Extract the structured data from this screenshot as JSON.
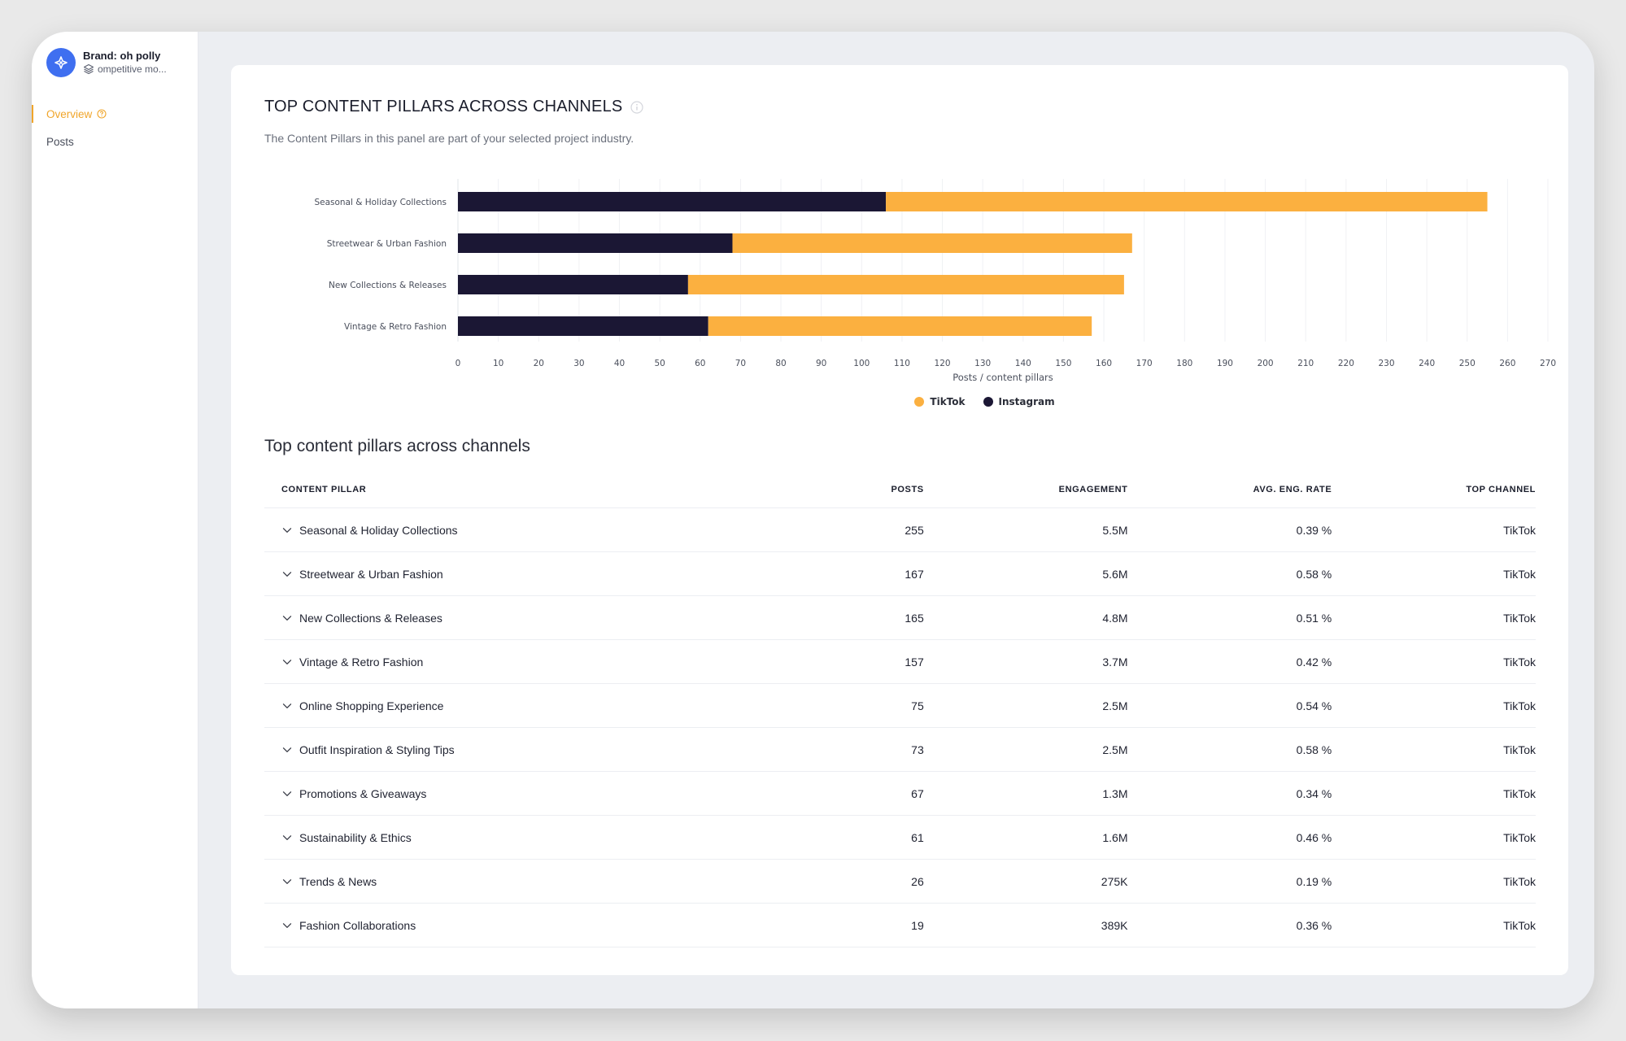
{
  "sidebar": {
    "brand_name": "Brand: oh polly",
    "brand_sub": "ompetitive mo...",
    "items": [
      {
        "label": "Overview",
        "active": true
      },
      {
        "label": "Posts",
        "active": false
      }
    ]
  },
  "panel": {
    "title": "TOP CONTENT PILLARS ACROSS CHANNELS",
    "subtitle": "The Content Pillars in this panel are part of your selected project industry."
  },
  "colors": {
    "tiktok": "#fbb040",
    "instagram": "#1b1734",
    "accent": "#f0a52a",
    "brand_avatar": "#3f6ff0"
  },
  "chart_data": {
    "type": "bar",
    "orientation": "horizontal",
    "stacked": true,
    "categories": [
      "Seasonal & Holiday Collections",
      "Streetwear & Urban Fashion",
      "New Collections & Releases",
      "Vintage & Retro Fashion"
    ],
    "series": [
      {
        "name": "Instagram",
        "values": [
          106,
          68,
          57,
          62
        ]
      },
      {
        "name": "TikTok",
        "values": [
          149,
          99,
          108,
          95
        ]
      }
    ],
    "xlabel": "Posts / content pillars",
    "xlim": [
      0,
      270
    ],
    "xticks": [
      0,
      10,
      20,
      30,
      40,
      50,
      60,
      70,
      80,
      90,
      100,
      110,
      120,
      130,
      140,
      150,
      160,
      170,
      180,
      190,
      200,
      210,
      220,
      230,
      240,
      250,
      260,
      270
    ],
    "grid": true,
    "legend": "bottom-center",
    "legend_entries": [
      "TikTok",
      "Instagram"
    ]
  },
  "table": {
    "title": "Top content pillars across channels",
    "headers": {
      "pillar": "CONTENT PILLAR",
      "posts": "POSTS",
      "engagement": "ENGAGEMENT",
      "rate": "AVG. ENG. RATE",
      "channel": "TOP CHANNEL"
    },
    "rows": [
      {
        "pillar": "Seasonal & Holiday Collections",
        "posts": "255",
        "engagement": "5.5M",
        "rate": "0.39 %",
        "channel": "TikTok"
      },
      {
        "pillar": "Streetwear & Urban Fashion",
        "posts": "167",
        "engagement": "5.6M",
        "rate": "0.58 %",
        "channel": "TikTok"
      },
      {
        "pillar": "New Collections & Releases",
        "posts": "165",
        "engagement": "4.8M",
        "rate": "0.51 %",
        "channel": "TikTok"
      },
      {
        "pillar": "Vintage & Retro Fashion",
        "posts": "157",
        "engagement": "3.7M",
        "rate": "0.42 %",
        "channel": "TikTok"
      },
      {
        "pillar": "Online Shopping Experience",
        "posts": "75",
        "engagement": "2.5M",
        "rate": "0.54 %",
        "channel": "TikTok"
      },
      {
        "pillar": "Outfit Inspiration & Styling Tips",
        "posts": "73",
        "engagement": "2.5M",
        "rate": "0.58 %",
        "channel": "TikTok"
      },
      {
        "pillar": "Promotions & Giveaways",
        "posts": "67",
        "engagement": "1.3M",
        "rate": "0.34 %",
        "channel": "TikTok"
      },
      {
        "pillar": "Sustainability & Ethics",
        "posts": "61",
        "engagement": "1.6M",
        "rate": "0.46 %",
        "channel": "TikTok"
      },
      {
        "pillar": "Trends & News",
        "posts": "26",
        "engagement": "275K",
        "rate": "0.19 %",
        "channel": "TikTok"
      },
      {
        "pillar": "Fashion Collaborations",
        "posts": "19",
        "engagement": "389K",
        "rate": "0.36 %",
        "channel": "TikTok"
      }
    ]
  }
}
